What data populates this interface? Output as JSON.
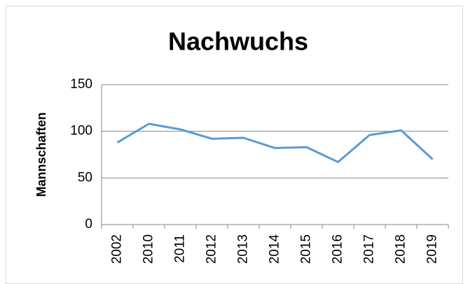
{
  "chart_data": {
    "type": "line",
    "title": "Nachwuchs",
    "y_label": "Mannschaften",
    "categories": [
      "2002",
      "2010",
      "2011",
      "2012",
      "2013",
      "2014",
      "2015",
      "2016",
      "2017",
      "2018",
      "2019"
    ],
    "values": [
      88,
      108,
      102,
      92,
      93,
      82,
      83,
      67,
      96,
      101,
      70
    ],
    "color": "#5b9bd5",
    "ylim": [
      0,
      150
    ],
    "yticks": [
      0,
      50,
      100,
      150
    ],
    "grid": true
  }
}
